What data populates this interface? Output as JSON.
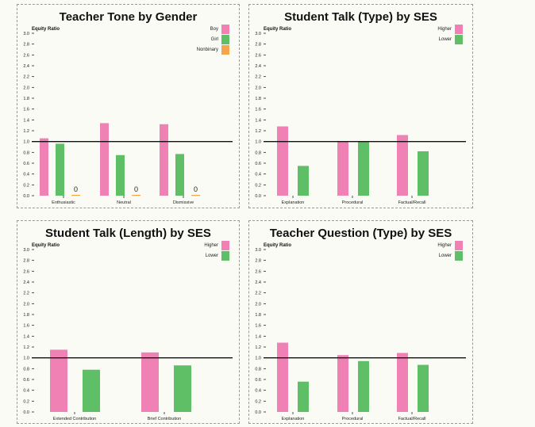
{
  "colors": {
    "higher": "#f081b5",
    "lower": "#5fbf67",
    "nonbinary": "#f5a54a"
  },
  "chart_data": [
    {
      "type": "bar",
      "title": "Teacher Tone by Gender",
      "ylabel": "Equity Ratio",
      "ylim": [
        0,
        3.0
      ],
      "yticks": [
        "0.0",
        "0.2",
        "0.4",
        "0.6",
        "0.8",
        "1.0",
        "1.2",
        "1.4",
        "1.6",
        "1.8",
        "2.0",
        "2.2",
        "2.4",
        "2.6",
        "2.8",
        "3.0"
      ],
      "reference_line": 1.0,
      "categories": [
        "Enthusiastic",
        "Neutral",
        "Dismissive"
      ],
      "series": [
        {
          "name": "Boy",
          "color": "#f081b5",
          "values": [
            1.06,
            1.34,
            1.32
          ]
        },
        {
          "name": "Girl",
          "color": "#5fbf67",
          "values": [
            0.96,
            0.75,
            0.77
          ]
        },
        {
          "name": "Nonbinary",
          "color": "#f5a54a",
          "values": [
            0,
            0,
            0
          ]
        }
      ],
      "data_labels": [
        "0",
        "0",
        "0"
      ],
      "legend": "top-right"
    },
    {
      "type": "bar",
      "title": "Student Talk (Type) by SES",
      "ylabel": "Equity Ratio",
      "ylim": [
        0,
        3.0
      ],
      "yticks": [
        "0.0",
        "0.2",
        "0.4",
        "0.6",
        "0.8",
        "1.0",
        "1.2",
        "1.4",
        "1.6",
        "1.8",
        "2.0",
        "2.2",
        "2.4",
        "2.6",
        "2.8",
        "3.0"
      ],
      "reference_line": 1.0,
      "categories": [
        "Explanation",
        "Procedural",
        "Factual/Recall"
      ],
      "series": [
        {
          "name": "Higher",
          "color": "#f081b5",
          "values": [
            1.28,
            1.0,
            1.12
          ]
        },
        {
          "name": "Lower",
          "color": "#5fbf67",
          "values": [
            0.55,
            1.0,
            0.82
          ]
        }
      ],
      "legend": "top-right"
    },
    {
      "type": "bar",
      "title": "Student Talk (Length) by SES",
      "ylabel": "Equity Ratio",
      "ylim": [
        0,
        3.0
      ],
      "yticks": [
        "0.0",
        "0.2",
        "0.4",
        "0.6",
        "0.8",
        "1.0",
        "1.2",
        "1.4",
        "1.6",
        "1.8",
        "2.0",
        "2.2",
        "2.4",
        "2.6",
        "2.8",
        "3.0"
      ],
      "reference_line": 1.0,
      "categories": [
        "Extended Contribution",
        "Brief Contribution"
      ],
      "series": [
        {
          "name": "Higher",
          "color": "#f081b5",
          "values": [
            1.15,
            1.1
          ]
        },
        {
          "name": "Lower",
          "color": "#5fbf67",
          "values": [
            0.78,
            0.86
          ]
        }
      ],
      "legend": "top-right"
    },
    {
      "type": "bar",
      "title": "Teacher Question (Type) by SES",
      "ylabel": "Equity Ratio",
      "ylim": [
        0,
        3.0
      ],
      "yticks": [
        "0.0",
        "0.2",
        "0.4",
        "0.6",
        "0.8",
        "1.0",
        "1.2",
        "1.4",
        "1.6",
        "1.8",
        "2.0",
        "2.2",
        "2.4",
        "2.6",
        "2.8",
        "3.0"
      ],
      "reference_line": 1.0,
      "categories": [
        "Explanation",
        "Procedural",
        "Factual/Recall"
      ],
      "series": [
        {
          "name": "Higher",
          "color": "#f081b5",
          "values": [
            1.28,
            1.05,
            1.09
          ]
        },
        {
          "name": "Lower",
          "color": "#5fbf67",
          "values": [
            0.56,
            0.94,
            0.87
          ]
        }
      ],
      "legend": "top-right"
    }
  ]
}
